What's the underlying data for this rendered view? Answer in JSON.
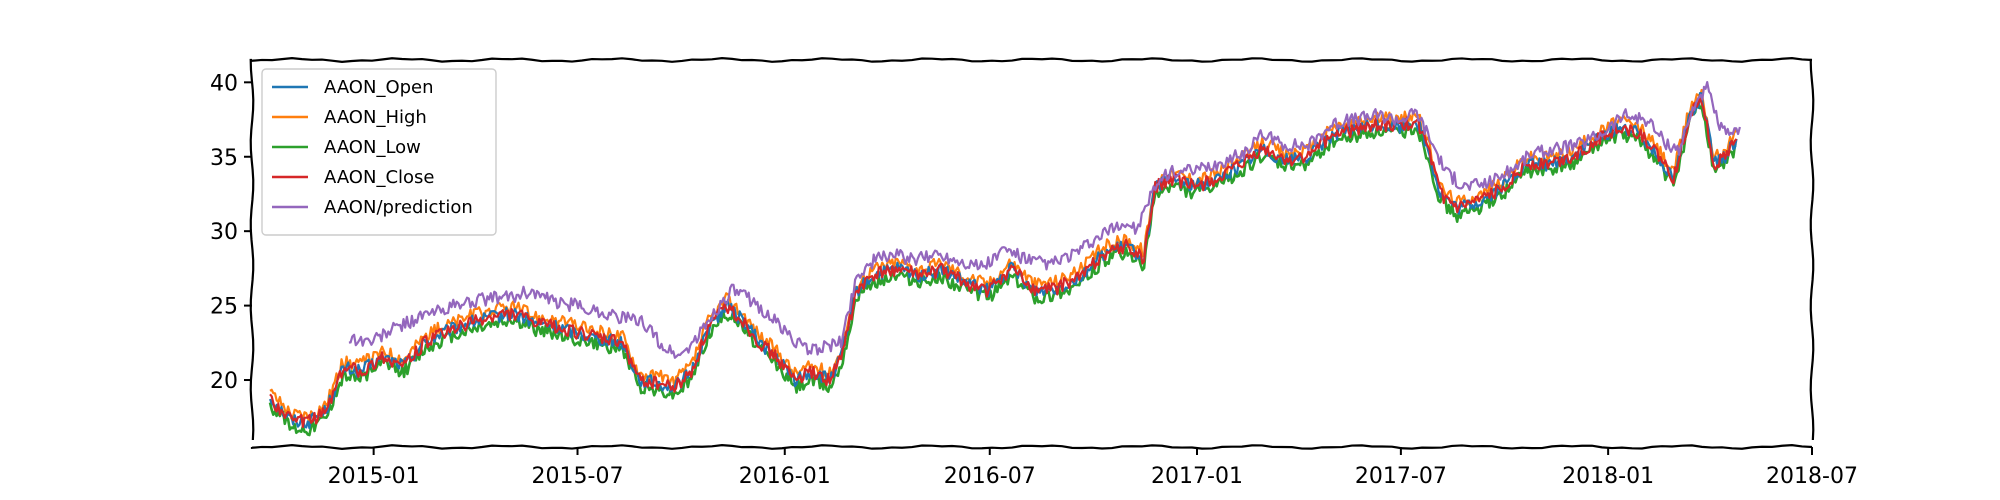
{
  "chart_data": {
    "type": "line",
    "title": "",
    "xlabel": "",
    "ylabel": "",
    "xlim": [
      "2014-09-15",
      "2018-07-01"
    ],
    "ylim": [
      15.5,
      41.5
    ],
    "x_ticks": [
      {
        "date": "2015-01-01",
        "label": "2015-01"
      },
      {
        "date": "2015-07-01",
        "label": "2015-07"
      },
      {
        "date": "2016-01-01",
        "label": "2016-01"
      },
      {
        "date": "2016-07-01",
        "label": "2016-07"
      },
      {
        "date": "2017-01-01",
        "label": "2017-01"
      },
      {
        "date": "2017-07-01",
        "label": "2017-07"
      },
      {
        "date": "2018-01-01",
        "label": "2018-01"
      },
      {
        "date": "2018-07-01",
        "label": "2018-07"
      }
    ],
    "y_ticks": [
      20,
      25,
      30,
      35,
      40
    ],
    "grid": false,
    "legend_position": "top-left",
    "close_points": [
      [
        "2014-10-01",
        18.8
      ],
      [
        "2014-10-20",
        17.3
      ],
      [
        "2014-11-05",
        17.2
      ],
      [
        "2014-11-20",
        18.0
      ],
      [
        "2014-12-05",
        20.8
      ],
      [
        "2014-12-20",
        20.6
      ],
      [
        "2015-01-10",
        21.5
      ],
      [
        "2015-01-28",
        21.0
      ],
      [
        "2015-02-15",
        22.5
      ],
      [
        "2015-03-05",
        23.2
      ],
      [
        "2015-03-25",
        23.8
      ],
      [
        "2015-04-15",
        24.2
      ],
      [
        "2015-05-05",
        24.5
      ],
      [
        "2015-05-25",
        23.8
      ],
      [
        "2015-06-10",
        23.6
      ],
      [
        "2015-06-30",
        23.2
      ],
      [
        "2015-07-20",
        22.8
      ],
      [
        "2015-08-10",
        22.5
      ],
      [
        "2015-08-25",
        20.0
      ],
      [
        "2015-09-10",
        19.8
      ],
      [
        "2015-09-25",
        19.5
      ],
      [
        "2015-10-10",
        20.5
      ],
      [
        "2015-10-25",
        23.5
      ],
      [
        "2015-11-10",
        25.0
      ],
      [
        "2015-11-25",
        24.0
      ],
      [
        "2015-12-10",
        22.5
      ],
      [
        "2015-12-25",
        21.5
      ],
      [
        "2016-01-10",
        20.0
      ],
      [
        "2016-01-25",
        20.5
      ],
      [
        "2016-02-10",
        20.0
      ],
      [
        "2016-02-20",
        21.5
      ],
      [
        "2016-03-05",
        26.0
      ],
      [
        "2016-03-20",
        27.0
      ],
      [
        "2016-04-10",
        27.5
      ],
      [
        "2016-04-30",
        27.0
      ],
      [
        "2016-05-20",
        27.4
      ],
      [
        "2016-06-10",
        26.5
      ],
      [
        "2016-06-30",
        26.0
      ],
      [
        "2016-07-20",
        27.5
      ],
      [
        "2016-08-10",
        26.0
      ],
      [
        "2016-08-30",
        26.2
      ],
      [
        "2016-09-20",
        27.0
      ],
      [
        "2016-10-10",
        28.5
      ],
      [
        "2016-10-30",
        29.0
      ],
      [
        "2016-11-15",
        28.2
      ],
      [
        "2016-11-25",
        33.0
      ],
      [
        "2016-12-10",
        33.5
      ],
      [
        "2016-12-30",
        33.0
      ],
      [
        "2017-01-20",
        33.5
      ],
      [
        "2017-02-10",
        34.5
      ],
      [
        "2017-02-28",
        35.5
      ],
      [
        "2017-03-20",
        34.8
      ],
      [
        "2017-04-10",
        35.0
      ],
      [
        "2017-05-01",
        36.5
      ],
      [
        "2017-05-20",
        36.8
      ],
      [
        "2017-06-10",
        37.2
      ],
      [
        "2017-06-30",
        37.0
      ],
      [
        "2017-07-15",
        37.5
      ],
      [
        "2017-07-25",
        35.5
      ],
      [
        "2017-08-05",
        32.5
      ],
      [
        "2017-08-20",
        31.5
      ],
      [
        "2017-09-10",
        32.0
      ],
      [
        "2017-09-30",
        33.0
      ],
      [
        "2017-10-20",
        34.5
      ],
      [
        "2017-11-10",
        34.5
      ],
      [
        "2017-11-30",
        35.0
      ],
      [
        "2017-12-20",
        36.0
      ],
      [
        "2018-01-10",
        37.0
      ],
      [
        "2018-01-30",
        36.5
      ],
      [
        "2018-02-15",
        35.0
      ],
      [
        "2018-02-28",
        33.5
      ],
      [
        "2018-03-15",
        38.0
      ],
      [
        "2018-03-25",
        39.0
      ],
      [
        "2018-04-05",
        34.5
      ],
      [
        "2018-04-15",
        35.0
      ],
      [
        "2018-04-25",
        36.2
      ]
    ],
    "prediction_points": [
      [
        "2014-12-10",
        22.8
      ],
      [
        "2014-12-30",
        22.6
      ],
      [
        "2015-01-20",
        23.5
      ],
      [
        "2015-02-10",
        24.2
      ],
      [
        "2015-03-05",
        24.8
      ],
      [
        "2015-03-25",
        25.2
      ],
      [
        "2015-04-15",
        25.5
      ],
      [
        "2015-05-05",
        25.6
      ],
      [
        "2015-05-20",
        26.0
      ],
      [
        "2015-06-10",
        25.2
      ],
      [
        "2015-06-30",
        25.0
      ],
      [
        "2015-07-20",
        24.6
      ],
      [
        "2015-08-10",
        24.2
      ],
      [
        "2015-08-30",
        23.8
      ],
      [
        "2015-09-15",
        22.2
      ],
      [
        "2015-09-30",
        21.6
      ],
      [
        "2015-10-15",
        22.8
      ],
      [
        "2015-10-30",
        24.5
      ],
      [
        "2015-11-15",
        26.0
      ],
      [
        "2015-11-30",
        25.5
      ],
      [
        "2015-12-20",
        24.2
      ],
      [
        "2016-01-05",
        23.0
      ],
      [
        "2016-01-20",
        22.0
      ],
      [
        "2016-02-05",
        22.2
      ],
      [
        "2016-02-20",
        22.5
      ],
      [
        "2016-03-05",
        27.0
      ],
      [
        "2016-03-20",
        28.0
      ],
      [
        "2016-04-05",
        28.5
      ],
      [
        "2016-04-25",
        28.0
      ],
      [
        "2016-05-15",
        28.5
      ],
      [
        "2016-06-05",
        28.0
      ],
      [
        "2016-06-25",
        27.6
      ],
      [
        "2016-07-15",
        28.8
      ],
      [
        "2016-08-05",
        28.0
      ],
      [
        "2016-08-25",
        27.8
      ],
      [
        "2016-09-15",
        28.5
      ],
      [
        "2016-10-05",
        29.5
      ],
      [
        "2016-10-25",
        30.5
      ],
      [
        "2016-11-10",
        30.2
      ],
      [
        "2016-11-25",
        33.2
      ],
      [
        "2016-12-10",
        34.0
      ],
      [
        "2016-12-30",
        34.0
      ],
      [
        "2017-01-20",
        34.5
      ],
      [
        "2017-02-10",
        35.2
      ],
      [
        "2017-02-28",
        36.5
      ],
      [
        "2017-03-20",
        35.8
      ],
      [
        "2017-04-10",
        35.8
      ],
      [
        "2017-05-01",
        37.2
      ],
      [
        "2017-05-20",
        37.5
      ],
      [
        "2017-06-10",
        37.8
      ],
      [
        "2017-06-30",
        37.5
      ],
      [
        "2017-07-15",
        38.0
      ],
      [
        "2017-07-25",
        36.5
      ],
      [
        "2017-08-10",
        34.0
      ],
      [
        "2017-08-25",
        33.0
      ],
      [
        "2017-09-15",
        33.2
      ],
      [
        "2017-10-05",
        34.0
      ],
      [
        "2017-10-25",
        35.2
      ],
      [
        "2017-11-15",
        35.5
      ],
      [
        "2017-12-05",
        35.8
      ],
      [
        "2017-12-25",
        36.5
      ],
      [
        "2018-01-15",
        37.8
      ],
      [
        "2018-02-05",
        37.5
      ],
      [
        "2018-02-20",
        36.0
      ],
      [
        "2018-03-05",
        35.5
      ],
      [
        "2018-03-20",
        38.8
      ],
      [
        "2018-03-30",
        39.6
      ],
      [
        "2018-04-10",
        37.0
      ],
      [
        "2018-04-20",
        36.2
      ],
      [
        "2018-04-28",
        37.0
      ]
    ],
    "series": [
      {
        "name": "AAON_Open",
        "color": "#1f77b4",
        "source": "close",
        "offset": 0.0
      },
      {
        "name": "AAON_High",
        "color": "#ff7f0e",
        "source": "close",
        "offset": 0.45
      },
      {
        "name": "AAON_Low",
        "color": "#2ca02c",
        "source": "close",
        "offset": -0.45
      },
      {
        "name": "AAON_Close",
        "color": "#d62728",
        "source": "close",
        "offset": 0.0
      },
      {
        "name": "AAON/prediction",
        "color": "#9467bd",
        "source": "prediction",
        "offset": 0.0
      }
    ]
  }
}
